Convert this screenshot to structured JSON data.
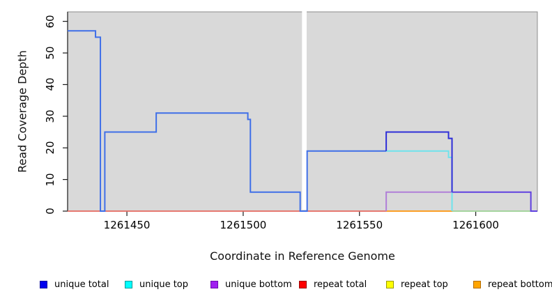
{
  "chart_data": {
    "type": "line",
    "subtype": "step-coverage",
    "title": "",
    "xlabel": "Coordinate in Reference Genome",
    "ylabel": "Read Coverage Depth",
    "xlim": [
      1261424.5,
      1261626.5
    ],
    "ylim": [
      0,
      63
    ],
    "xticks": [
      1261450,
      1261500,
      1261550,
      1261600
    ],
    "yticks": [
      0,
      10,
      20,
      30,
      40,
      50,
      60
    ],
    "grid": false,
    "panel_bg": "#d9d9d9",
    "box_color": "#8c8c8c",
    "axis_color": "#1a1a1a",
    "gap_region": [
      1261525.3,
      1261527.3
    ],
    "legend_position": "bottom",
    "legend": [
      {
        "label": "unique total",
        "color": "#0000ee",
        "border": "#0000a0"
      },
      {
        "label": "unique top",
        "color": "#00ffff",
        "border": "#009a9a"
      },
      {
        "label": "unique bottom",
        "color": "#a020f0",
        "border": "#6a0dad"
      },
      {
        "label": "repeat total",
        "color": "#ff0000",
        "border": "#990000"
      },
      {
        "label": "repeat top",
        "color": "#ffff00",
        "border": "#999900"
      },
      {
        "label": "repeat bottom",
        "color": "#ffa500",
        "border": "#b36b00"
      }
    ],
    "series": [
      {
        "name": "repeat top (overplotted at zero)",
        "color": "#ffff00",
        "width": 1.6,
        "points": [
          [
            1261424.5,
            0
          ],
          [
            1261626.5,
            0
          ]
        ]
      },
      {
        "name": "repeat total (zero across span)",
        "color": "#ea5878",
        "width": 1.6,
        "points": [
          [
            1261424.5,
            0
          ],
          [
            1261626.5,
            0
          ]
        ]
      },
      {
        "name": "repeat bottom (visible zero segment)",
        "color": "#ffa01e",
        "width": 1.8,
        "points": [
          [
            1261561.5,
            0
          ],
          [
            1261590,
            0
          ]
        ]
      },
      {
        "name": "unique top at zero over repeat lines",
        "color": "#9cdca6",
        "width": 1.8,
        "points": [
          [
            1261590,
            0
          ],
          [
            1261626.5,
            0
          ]
        ]
      },
      {
        "name": "unique bottom",
        "color": "#b07fd8",
        "width": 2,
        "points": [
          [
            1261561.5,
            0
          ],
          [
            1261561.5,
            6
          ],
          [
            1261590,
            6
          ]
        ]
      },
      {
        "name": "unique total + unique top overlap (left block)",
        "color": "#3f6fe8",
        "width": 2,
        "points": [
          [
            1261424.5,
            57
          ],
          [
            1261436.5,
            57
          ],
          [
            1261436.5,
            55
          ],
          [
            1261438.6,
            55
          ],
          [
            1261438.6,
            0
          ],
          [
            1261440.5,
            0
          ],
          [
            1261440.5,
            25
          ],
          [
            1261462.6,
            25
          ],
          [
            1261462.6,
            31
          ],
          [
            1261502,
            31
          ],
          [
            1261502,
            29
          ],
          [
            1261503.1,
            29
          ],
          [
            1261503.1,
            6
          ],
          [
            1261524.5,
            6
          ],
          [
            1261524.5,
            0
          ],
          [
            1261527.5,
            0
          ],
          [
            1261527.5,
            19
          ],
          [
            1261561.5,
            19
          ]
        ]
      },
      {
        "name": "unique top",
        "color": "#6fe3ec",
        "width": 2,
        "points": [
          [
            1261561.5,
            19
          ],
          [
            1261588.3,
            19
          ],
          [
            1261588.3,
            17
          ],
          [
            1261589.8,
            17
          ],
          [
            1261589.8,
            0
          ]
        ]
      },
      {
        "name": "unique total",
        "color": "#2e2ed8",
        "width": 2,
        "points": [
          [
            1261561.5,
            19
          ],
          [
            1261561.5,
            25
          ],
          [
            1261588.3,
            25
          ],
          [
            1261588.3,
            23
          ],
          [
            1261589.8,
            23
          ],
          [
            1261589.8,
            6
          ]
        ]
      },
      {
        "name": "unique total + unique bottom overlap (right block)",
        "color": "#6040e0",
        "width": 2,
        "points": [
          [
            1261589.8,
            6
          ],
          [
            1261623.7,
            6
          ],
          [
            1261623.7,
            0
          ],
          [
            1261626.5,
            0
          ]
        ]
      }
    ]
  }
}
